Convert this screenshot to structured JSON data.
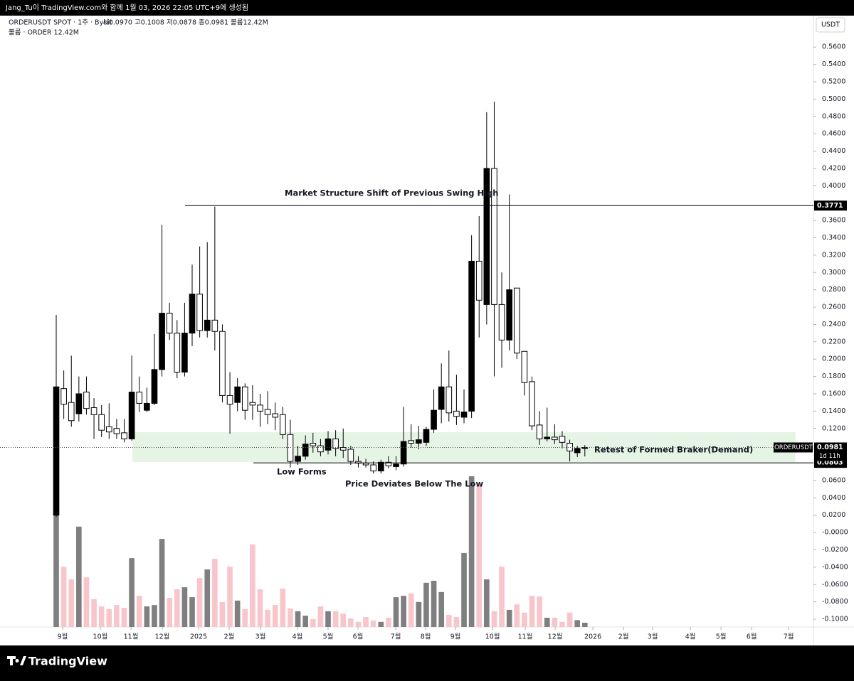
{
  "header": {
    "credit": "Jang_Tu이 TradingView.com와 함께 1월 03, 2026 22:05 UTC+9에 생성됨"
  },
  "footer": {
    "brand": "TradingView"
  },
  "chart_data": {
    "type": "candlestick",
    "legend_symbol": "ORDERUSDT SPOT · 1주 · Bybit",
    "legend_ohlc": "시0.0970 고0.1008 저0.0878 종0.0981 볼륨12.42M",
    "legend_volume": "볼륨 · ORDER  12.42M",
    "currency": "USDT",
    "open": [
      0.02,
      0.166,
      0.15,
      0.137,
      0.162,
      0.144,
      0.136,
      0.122,
      0.12,
      0.115,
      0.108,
      0.162,
      0.141,
      0.149,
      0.188,
      0.253,
      0.23,
      0.185,
      0.23,
      0.275,
      0.233,
      0.245,
      0.232,
      0.158,
      0.15,
      0.168,
      0.15,
      0.147,
      0.142,
      0.137,
      0.136,
      0.113,
      0.082,
      0.088,
      0.103,
      0.1,
      0.095,
      0.108,
      0.098,
      0.096,
      0.082,
      0.08,
      0.078,
      0.071,
      0.081,
      0.076,
      0.079,
      0.106,
      0.103,
      0.104,
      0.119,
      0.142,
      0.168,
      0.14,
      0.133,
      0.14,
      0.313,
      0.263,
      0.42,
      0.263,
      0.222,
      0.282,
      0.209,
      0.174,
      0.124,
      0.108,
      0.11,
      0.111,
      0.103,
      0.092,
      0.097
    ],
    "high": [
      0.251,
      0.187,
      0.204,
      0.18,
      0.18,
      0.155,
      0.147,
      0.149,
      0.131,
      0.131,
      0.204,
      0.18,
      0.167,
      0.229,
      0.355,
      0.265,
      0.245,
      0.265,
      0.309,
      0.33,
      0.335,
      0.376,
      0.24,
      0.185,
      0.178,
      0.172,
      0.17,
      0.16,
      0.163,
      0.15,
      0.145,
      0.13,
      0.1,
      0.112,
      0.115,
      0.108,
      0.117,
      0.118,
      0.12,
      0.1,
      0.088,
      0.085,
      0.082,
      0.084,
      0.088,
      0.088,
      0.145,
      0.125,
      0.123,
      0.122,
      0.165,
      0.195,
      0.21,
      0.182,
      0.165,
      0.343,
      0.365,
      0.485,
      0.497,
      0.3,
      0.39,
      0.282,
      0.209,
      0.18,
      0.14,
      0.144,
      0.125,
      0.117,
      0.107,
      0.1,
      0.1008
    ],
    "low": [
      0.018,
      0.131,
      0.122,
      0.128,
      0.136,
      0.108,
      0.11,
      0.108,
      0.108,
      0.104,
      0.106,
      0.139,
      0.139,
      0.147,
      0.18,
      0.222,
      0.178,
      0.18,
      0.215,
      0.225,
      0.225,
      0.21,
      0.15,
      0.114,
      0.14,
      0.13,
      0.13,
      0.122,
      0.125,
      0.118,
      0.108,
      0.075,
      0.078,
      0.084,
      0.092,
      0.088,
      0.09,
      0.088,
      0.086,
      0.078,
      0.075,
      0.075,
      0.068,
      0.068,
      0.074,
      0.072,
      0.076,
      0.098,
      0.096,
      0.1,
      0.115,
      0.126,
      0.128,
      0.124,
      0.126,
      0.132,
      0.225,
      0.24,
      0.18,
      0.19,
      0.21,
      0.2,
      0.158,
      0.118,
      0.101,
      0.105,
      0.102,
      0.097,
      0.082,
      0.087,
      0.0878
    ],
    "close": [
      0.168,
      0.148,
      0.129,
      0.16,
      0.143,
      0.136,
      0.118,
      0.116,
      0.114,
      0.108,
      0.162,
      0.149,
      0.149,
      0.188,
      0.253,
      0.23,
      0.185,
      0.23,
      0.275,
      0.233,
      0.245,
      0.232,
      0.158,
      0.148,
      0.168,
      0.141,
      0.147,
      0.14,
      0.136,
      0.133,
      0.113,
      0.082,
      0.088,
      0.102,
      0.1,
      0.093,
      0.108,
      0.097,
      0.095,
      0.082,
      0.08,
      0.078,
      0.071,
      0.081,
      0.077,
      0.079,
      0.105,
      0.103,
      0.107,
      0.119,
      0.141,
      0.168,
      0.138,
      0.134,
      0.139,
      0.313,
      0.268,
      0.42,
      0.263,
      0.222,
      0.28,
      0.207,
      0.173,
      0.123,
      0.108,
      0.11,
      0.107,
      0.104,
      0.094,
      0.097,
      0.0981
    ],
    "volume": [
      326,
      176,
      139,
      293,
      145,
      81,
      60,
      52,
      64,
      56,
      201,
      91,
      60,
      64,
      257,
      85,
      110,
      116,
      87,
      143,
      168,
      199,
      73,
      176,
      77,
      52,
      241,
      110,
      50,
      64,
      112,
      54,
      46,
      33,
      23,
      60,
      46,
      46,
      39,
      25,
      15,
      29,
      19,
      15,
      27,
      87,
      91,
      98,
      73,
      129,
      135,
      102,
      35,
      29,
      216,
      440,
      415,
      139,
      46,
      176,
      50,
      66,
      42,
      91,
      89,
      27,
      27,
      15,
      42,
      20,
      12.42
    ],
    "up_color": "#000000",
    "down_color": "#ffffff",
    "volume_up_color": "#7f7f7f",
    "volume_down_color": "#f8c6ca",
    "vlim": [
      0,
      440
    ],
    "xlim": [
      -7.446,
      100.27
    ],
    "xticks": [
      {
        "value": 0.85,
        "label": "9월"
      },
      {
        "value": 5.84,
        "label": "10월"
      },
      {
        "value": 9.9,
        "label": "11월"
      },
      {
        "value": 14.04,
        "label": "12월"
      },
      {
        "value": 18.85,
        "label": "2025"
      },
      {
        "value": 22.9,
        "label": "2월"
      },
      {
        "value": 27.05,
        "label": "3월"
      },
      {
        "value": 31.95,
        "label": "4월"
      },
      {
        "value": 36.0,
        "label": "5월"
      },
      {
        "value": 39.96,
        "label": "6월"
      },
      {
        "value": 44.96,
        "label": "7월"
      },
      {
        "value": 48.92,
        "label": "8월"
      },
      {
        "value": 52.87,
        "label": "9월"
      },
      {
        "value": 57.78,
        "label": "10월"
      },
      {
        "value": 62.11,
        "label": "11월"
      },
      {
        "value": 66.07,
        "label": "12월"
      },
      {
        "value": 71.06,
        "label": "2026"
      },
      {
        "value": 75.12,
        "label": "2월"
      },
      {
        "value": 78.98,
        "label": "3월"
      },
      {
        "value": 83.98,
        "label": "4월"
      },
      {
        "value": 88.03,
        "label": "5월"
      },
      {
        "value": 92.08,
        "label": "6월"
      },
      {
        "value": 96.98,
        "label": "7월"
      }
    ],
    "ylim": [
      -0.109,
      0.593
    ],
    "yticks": [
      {
        "value": 0.56,
        "label": "0.5600"
      },
      {
        "value": 0.54,
        "label": "0.5400"
      },
      {
        "value": 0.52,
        "label": "0.5200"
      },
      {
        "value": 0.5,
        "label": "0.5000"
      },
      {
        "value": 0.48,
        "label": "0.4800"
      },
      {
        "value": 0.46,
        "label": "0.4600"
      },
      {
        "value": 0.44,
        "label": "0.4400"
      },
      {
        "value": 0.42,
        "label": "0.4200"
      },
      {
        "value": 0.4,
        "label": "0.4000"
      },
      {
        "value": 0.36,
        "label": "0.3600"
      },
      {
        "value": 0.34,
        "label": "0.3400"
      },
      {
        "value": 0.32,
        "label": "0.3200"
      },
      {
        "value": 0.3,
        "label": "0.3000"
      },
      {
        "value": 0.28,
        "label": "0.2800"
      },
      {
        "value": 0.26,
        "label": "0.2600"
      },
      {
        "value": 0.24,
        "label": "0.2400"
      },
      {
        "value": 0.22,
        "label": "0.2200"
      },
      {
        "value": 0.2,
        "label": "0.2000"
      },
      {
        "value": 0.18,
        "label": "0.1800"
      },
      {
        "value": 0.16,
        "label": "0.1600"
      },
      {
        "value": 0.14,
        "label": "0.1400"
      },
      {
        "value": 0.12,
        "label": "0.1200"
      },
      {
        "value": 0.06,
        "label": "0.0600"
      },
      {
        "value": 0.04,
        "label": "0.0400"
      },
      {
        "value": 0.02,
        "label": "0.0200"
      },
      {
        "value": 0,
        "label": "-0.0000"
      },
      {
        "value": -0.02,
        "label": "-0.0200"
      },
      {
        "value": -0.04,
        "label": "-0.0400"
      },
      {
        "value": -0.06,
        "label": "-0.0600"
      },
      {
        "value": -0.08,
        "label": "-0.0800"
      },
      {
        "value": -0.1,
        "label": "-0.1000"
      }
    ],
    "hlines": [
      {
        "value": 0.3771,
        "x_start": 17.06
      },
      {
        "value": 0.0803,
        "x_start": 26.1
      }
    ],
    "last_price": {
      "value": 0.0981,
      "name": "ORDERUSDT",
      "countdown": "1d 11h"
    },
    "zone": {
      "y": [
        0.0814,
        0.1157
      ],
      "x": [
        10.08,
        97.9
      ],
      "color": "#e6f4e6"
    },
    "annotations": [
      "Market Structure Shift of Previous Swing High",
      "Low Forms",
      "Price Deviates Below The Low",
      "Retest of Formed Braker(Demand)"
    ]
  }
}
